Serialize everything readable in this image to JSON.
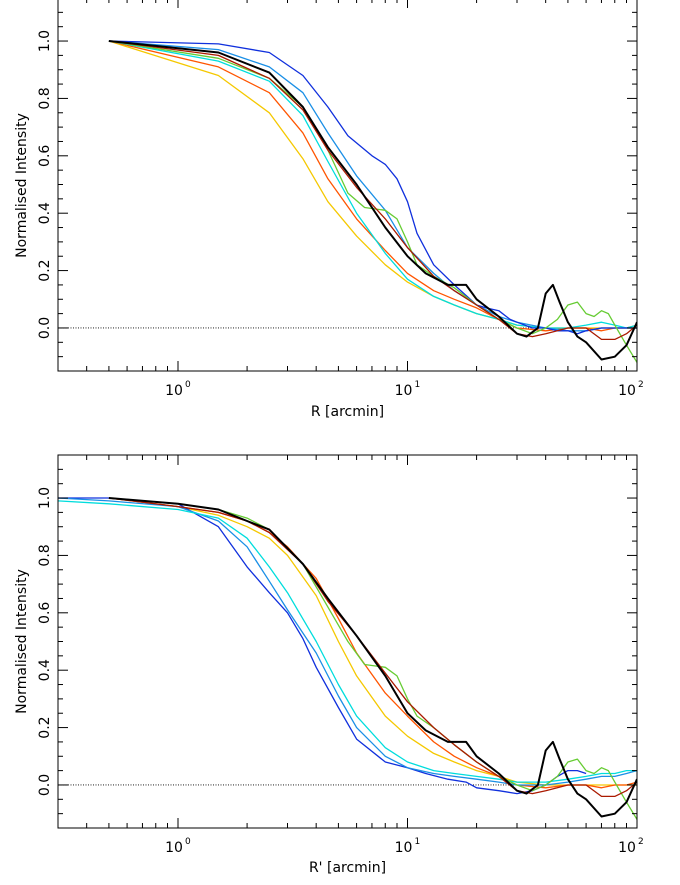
{
  "chart_data": [
    {
      "type": "line",
      "xlabel": "R [arcmin]",
      "ylabel": "Normalised Intensity",
      "x_scale": "log",
      "xlim": [
        0.3,
        100
      ],
      "ylim": [
        -0.15,
        1.15
      ],
      "x_tick_labels": [
        {
          "base": "10",
          "exp": "0"
        },
        {
          "base": "10",
          "exp": "1"
        },
        {
          "base": "10",
          "exp": "2"
        }
      ],
      "y_tick_labels": [
        "0.0",
        "0.2",
        "0.4",
        "0.6",
        "0.8",
        "1.0"
      ],
      "zero_line": true,
      "series": [
        {
          "color": "#f5c800",
          "x": [
            0.5,
            1.5,
            2.5,
            3.5,
            4.5,
            6,
            8,
            10,
            13,
            16,
            20,
            25,
            30,
            40,
            50,
            60,
            70,
            80,
            90,
            100
          ],
          "y": [
            1.0,
            0.88,
            0.75,
            0.59,
            0.44,
            0.32,
            0.22,
            0.16,
            0.11,
            0.08,
            0.05,
            0.03,
            0.01,
            0.0,
            0.0,
            0.0,
            0.0,
            0.0,
            0.0,
            0.0
          ]
        },
        {
          "color": "#ff5500",
          "x": [
            0.5,
            1.5,
            2.5,
            3.5,
            4.5,
            6,
            8,
            10,
            13,
            16,
            20,
            25,
            30,
            40,
            50,
            60,
            70,
            80,
            90,
            100
          ],
          "y": [
            1.0,
            0.91,
            0.82,
            0.68,
            0.52,
            0.38,
            0.27,
            0.19,
            0.13,
            0.1,
            0.07,
            0.03,
            0.0,
            -0.01,
            0.0,
            0.0,
            -0.01,
            0.0,
            0.0,
            0.01
          ]
        },
        {
          "color": "#00dddd",
          "x": [
            0.5,
            1.5,
            2.5,
            3.5,
            4.5,
            6,
            8,
            10,
            13,
            16,
            20,
            25,
            30,
            40,
            50,
            60,
            70,
            80,
            90,
            100
          ],
          "y": [
            1.0,
            0.93,
            0.86,
            0.74,
            0.58,
            0.4,
            0.26,
            0.17,
            0.11,
            0.08,
            0.05,
            0.03,
            0.01,
            0.0,
            0.0,
            0.01,
            0.02,
            0.01,
            0.0,
            0.01
          ]
        },
        {
          "color": "#1a8fe6",
          "x": [
            0.5,
            1.5,
            2.5,
            3.5,
            4.5,
            6,
            8,
            10,
            13,
            16,
            20,
            25,
            30,
            40,
            50,
            60,
            70,
            80,
            90,
            100
          ],
          "y": [
            1.0,
            0.97,
            0.91,
            0.82,
            0.68,
            0.53,
            0.41,
            0.28,
            0.19,
            0.13,
            0.08,
            0.04,
            0.02,
            0.0,
            -0.01,
            -0.01,
            0.0,
            0.0,
            0.0,
            0.0
          ]
        },
        {
          "color": "#1030dd",
          "x": [
            0.5,
            1.5,
            2.5,
            3.5,
            4.5,
            5.5,
            7,
            8,
            9,
            10,
            11,
            13,
            16,
            20,
            22,
            25,
            28,
            30,
            35,
            40,
            45,
            50,
            55,
            60,
            70,
            80,
            90,
            100
          ],
          "y": [
            1.0,
            0.99,
            0.96,
            0.88,
            0.77,
            0.67,
            0.6,
            0.57,
            0.52,
            0.44,
            0.33,
            0.22,
            0.15,
            0.08,
            0.07,
            0.06,
            0.03,
            0.02,
            0.0,
            0.0,
            -0.01,
            -0.01,
            -0.02,
            -0.01,
            0.0,
            0.0,
            0.0,
            0.0
          ]
        },
        {
          "color": "#66cc33",
          "x": [
            0.5,
            1.5,
            2.5,
            3.5,
            4.5,
            5.5,
            6.5,
            8,
            9,
            10,
            11,
            13,
            16,
            20,
            25,
            30,
            35,
            40,
            45,
            50,
            55,
            60,
            65,
            70,
            75,
            80,
            90,
            100
          ],
          "y": [
            1.0,
            0.94,
            0.87,
            0.77,
            0.62,
            0.47,
            0.42,
            0.41,
            0.38,
            0.3,
            0.22,
            0.18,
            0.14,
            0.08,
            0.03,
            0.0,
            -0.02,
            0.0,
            0.03,
            0.08,
            0.09,
            0.05,
            0.04,
            0.06,
            0.05,
            0.01,
            -0.06,
            -0.12
          ]
        },
        {
          "color": "#aa1a00",
          "x": [
            0.5,
            1.5,
            2.5,
            3.5,
            4.5,
            6,
            8,
            10,
            13,
            16,
            20,
            25,
            30,
            35,
            40,
            50,
            60,
            70,
            80,
            90,
            100
          ],
          "y": [
            1.0,
            0.95,
            0.87,
            0.76,
            0.62,
            0.49,
            0.38,
            0.28,
            0.18,
            0.13,
            0.08,
            0.03,
            -0.02,
            -0.03,
            -0.02,
            0.0,
            0.0,
            -0.04,
            -0.04,
            -0.02,
            0.01
          ]
        },
        {
          "color": "#000000",
          "width": 2,
          "x": [
            0.5,
            1.5,
            2.5,
            3.5,
            4.5,
            6,
            8,
            10,
            12,
            15,
            18,
            20,
            25,
            30,
            33,
            37,
            40,
            43,
            46,
            50,
            55,
            60,
            70,
            80,
            90,
            100
          ],
          "y": [
            1.0,
            0.96,
            0.89,
            0.77,
            0.63,
            0.5,
            0.35,
            0.25,
            0.19,
            0.15,
            0.15,
            0.1,
            0.04,
            -0.02,
            -0.03,
            0.0,
            0.12,
            0.15,
            0.09,
            0.02,
            -0.03,
            -0.05,
            -0.11,
            -0.1,
            -0.06,
            0.02
          ]
        }
      ]
    },
    {
      "type": "line",
      "xlabel": "R' [arcmin]",
      "ylabel": "Normalised Intensity",
      "x_scale": "log",
      "xlim": [
        0.3,
        100
      ],
      "ylim": [
        -0.15,
        1.15
      ],
      "x_tick_labels": [
        {
          "base": "10",
          "exp": "0"
        },
        {
          "base": "10",
          "exp": "1"
        },
        {
          "base": "10",
          "exp": "2"
        }
      ],
      "y_tick_labels": [
        "0.0",
        "0.2",
        "0.4",
        "0.6",
        "0.8",
        "1.0"
      ],
      "zero_line": true,
      "series": [
        {
          "color": "#f5c800",
          "x": [
            0.5,
            1.0,
            1.5,
            2.0,
            2.5,
            3,
            4,
            5,
            6,
            8,
            10,
            13,
            16,
            20,
            25,
            30,
            40,
            50,
            60,
            70,
            80,
            90,
            100
          ],
          "y": [
            1.0,
            0.97,
            0.94,
            0.9,
            0.86,
            0.8,
            0.66,
            0.5,
            0.38,
            0.24,
            0.17,
            0.11,
            0.08,
            0.05,
            0.03,
            0.01,
            0.0,
            0.0,
            0.0,
            0.0,
            0.0,
            0.0,
            0.0
          ]
        },
        {
          "color": "#ff5500",
          "x": [
            0.5,
            1.0,
            1.5,
            2.0,
            2.5,
            3,
            4,
            5,
            6,
            8,
            10,
            13,
            16,
            20,
            25,
            30,
            40,
            50,
            60,
            70,
            80,
            90,
            100
          ],
          "y": [
            1.0,
            0.97,
            0.95,
            0.92,
            0.88,
            0.83,
            0.72,
            0.58,
            0.46,
            0.32,
            0.24,
            0.15,
            0.1,
            0.06,
            0.03,
            0.0,
            -0.01,
            0.0,
            0.0,
            -0.01,
            0.0,
            0.0,
            0.01
          ]
        },
        {
          "color": "#1030dd",
          "x": [
            0.3,
            0.5,
            1.0,
            1.5,
            2.0,
            2.5,
            3,
            3.5,
            4,
            5,
            6,
            8,
            10,
            12,
            15,
            18,
            20,
            25,
            30,
            35,
            40,
            45,
            50,
            55,
            60
          ],
          "y": [
            1.0,
            1.0,
            0.98,
            0.9,
            0.76,
            0.67,
            0.6,
            0.51,
            0.41,
            0.27,
            0.16,
            0.08,
            0.06,
            0.04,
            0.02,
            0.01,
            -0.01,
            -0.02,
            -0.03,
            -0.02,
            0.0,
            0.03,
            0.05,
            0.05,
            0.04
          ]
        },
        {
          "color": "#1a8fe6",
          "x": [
            0.3,
            0.5,
            1.0,
            1.5,
            2.0,
            2.5,
            3,
            4,
            5,
            6,
            8,
            10,
            13,
            16,
            20,
            25,
            30,
            40,
            50,
            60,
            70,
            80,
            90,
            100
          ],
          "y": [
            1.0,
            0.99,
            0.97,
            0.92,
            0.83,
            0.71,
            0.61,
            0.46,
            0.31,
            0.2,
            0.1,
            0.06,
            0.04,
            0.03,
            0.02,
            0.01,
            0.0,
            0.0,
            0.01,
            0.02,
            0.03,
            0.03,
            0.04,
            0.05
          ]
        },
        {
          "color": "#00dddd",
          "x": [
            0.3,
            0.5,
            1.0,
            1.5,
            2.0,
            2.5,
            3,
            4,
            5,
            6,
            8,
            10,
            13,
            16,
            20,
            25,
            30,
            40,
            50,
            60,
            70,
            80,
            90,
            100
          ],
          "y": [
            0.99,
            0.98,
            0.96,
            0.93,
            0.86,
            0.76,
            0.67,
            0.5,
            0.35,
            0.24,
            0.13,
            0.08,
            0.05,
            0.04,
            0.03,
            0.02,
            0.01,
            0.01,
            0.02,
            0.03,
            0.04,
            0.04,
            0.05,
            0.05
          ]
        },
        {
          "color": "#66cc33",
          "x": [
            0.5,
            1.0,
            1.5,
            2.0,
            2.5,
            3.5,
            4.5,
            5.5,
            6.5,
            8,
            9,
            10,
            11,
            13,
            16,
            20,
            25,
            30,
            35,
            40,
            45,
            50,
            55,
            60,
            65,
            70,
            75,
            80,
            90,
            100
          ],
          "y": [
            1.0,
            0.98,
            0.96,
            0.93,
            0.89,
            0.77,
            0.62,
            0.5,
            0.42,
            0.41,
            0.38,
            0.3,
            0.24,
            0.2,
            0.14,
            0.08,
            0.03,
            0.0,
            -0.02,
            0.0,
            0.03,
            0.08,
            0.09,
            0.05,
            0.04,
            0.06,
            0.05,
            0.01,
            -0.06,
            -0.12
          ]
        },
        {
          "color": "#aa1a00",
          "x": [
            0.5,
            1.0,
            1.5,
            2.0,
            2.5,
            3.5,
            4.5,
            6,
            8,
            10,
            13,
            16,
            20,
            25,
            30,
            35,
            40,
            50,
            60,
            70,
            80,
            90,
            100
          ],
          "y": [
            1.0,
            0.97,
            0.95,
            0.92,
            0.88,
            0.77,
            0.64,
            0.52,
            0.39,
            0.29,
            0.2,
            0.14,
            0.08,
            0.03,
            -0.02,
            -0.03,
            -0.02,
            0.0,
            0.0,
            -0.04,
            -0.04,
            -0.02,
            0.01
          ]
        },
        {
          "color": "#000000",
          "width": 2,
          "x": [
            0.5,
            1.0,
            1.5,
            2.0,
            2.5,
            3.5,
            4.5,
            6,
            8,
            10,
            12,
            15,
            18,
            20,
            25,
            30,
            33,
            37,
            40,
            43,
            46,
            50,
            55,
            60,
            70,
            80,
            90,
            100
          ],
          "y": [
            1.0,
            0.98,
            0.96,
            0.92,
            0.89,
            0.77,
            0.65,
            0.52,
            0.38,
            0.25,
            0.19,
            0.15,
            0.15,
            0.1,
            0.04,
            -0.02,
            -0.03,
            0.0,
            0.12,
            0.15,
            0.09,
            0.02,
            -0.03,
            -0.05,
            -0.11,
            -0.1,
            -0.06,
            0.02
          ]
        }
      ]
    }
  ]
}
